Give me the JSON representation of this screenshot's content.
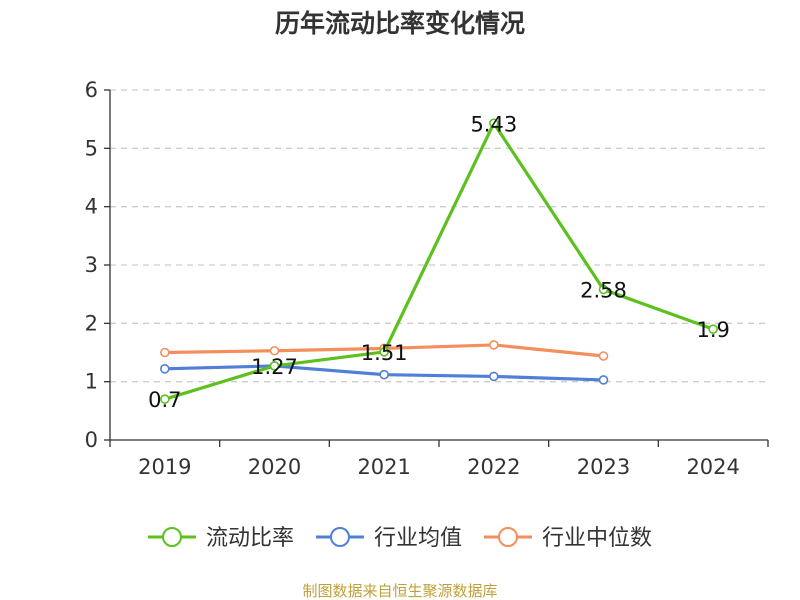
{
  "chart_data": {
    "type": "line",
    "title": "历年流动比率变化情况",
    "categories": [
      "2019",
      "2020",
      "2021",
      "2022",
      "2023",
      "2024"
    ],
    "ylim": [
      0,
      6
    ],
    "yticks": [
      "0",
      "1",
      "2",
      "3",
      "4",
      "5",
      "6"
    ],
    "grid": true,
    "legend_position": "bottom",
    "series": [
      {
        "name": "流动比率",
        "color": "#5cc01d",
        "values": [
          0.7,
          1.27,
          1.51,
          5.43,
          2.58,
          1.9
        ],
        "labels": [
          "0.7",
          "1.27",
          "1.51",
          "5.43",
          "2.58",
          "1.9"
        ]
      },
      {
        "name": "行业均值",
        "color": "#4f7fd8",
        "values": [
          1.22,
          1.27,
          1.12,
          1.09,
          1.03,
          null
        ]
      },
      {
        "name": "行业中位数",
        "color": "#f48e5c",
        "values": [
          1.5,
          1.53,
          1.57,
          1.63,
          1.44,
          null
        ]
      }
    ]
  },
  "footer": {
    "source": "制图数据来自恒生聚源数据库"
  }
}
